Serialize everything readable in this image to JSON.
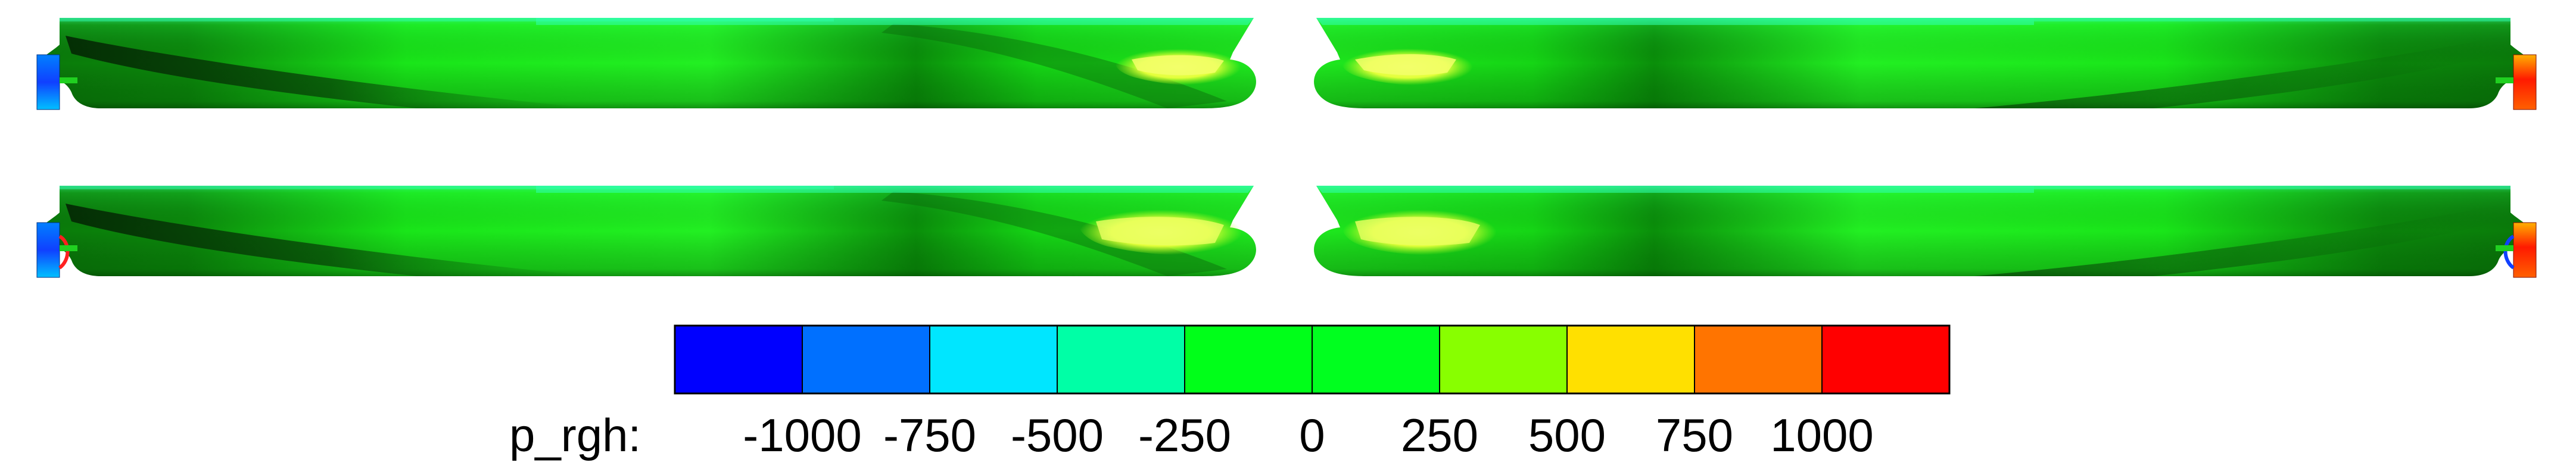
{
  "colorbar": {
    "variable_label": "p_rgh:",
    "tick_labels": [
      "-1000",
      "-750",
      "-500",
      "-250",
      "0",
      "250",
      "500",
      "750",
      "1000"
    ],
    "tick_values": [
      -1000,
      -750,
      -500,
      -250,
      0,
      250,
      500,
      750,
      1000
    ],
    "band_colors": [
      "#0000ff",
      "#0070ff",
      "#00e6ff",
      "#00ffa6",
      "#00ff19",
      "#00ff1f",
      "#88ff00",
      "#ffe000",
      "#ff7400",
      "#ff0000"
    ]
  },
  "surface_colors": {
    "hull_base": "#12ee12",
    "hull_shadow": "#063d06",
    "hull_highlight": "#55ff33",
    "bow_high_pressure": "#ecff4a",
    "stern_low_pressure": "#1060ff",
    "stern_high_pressure": "#ff1010",
    "waterline_band": "#20ffb0"
  }
}
